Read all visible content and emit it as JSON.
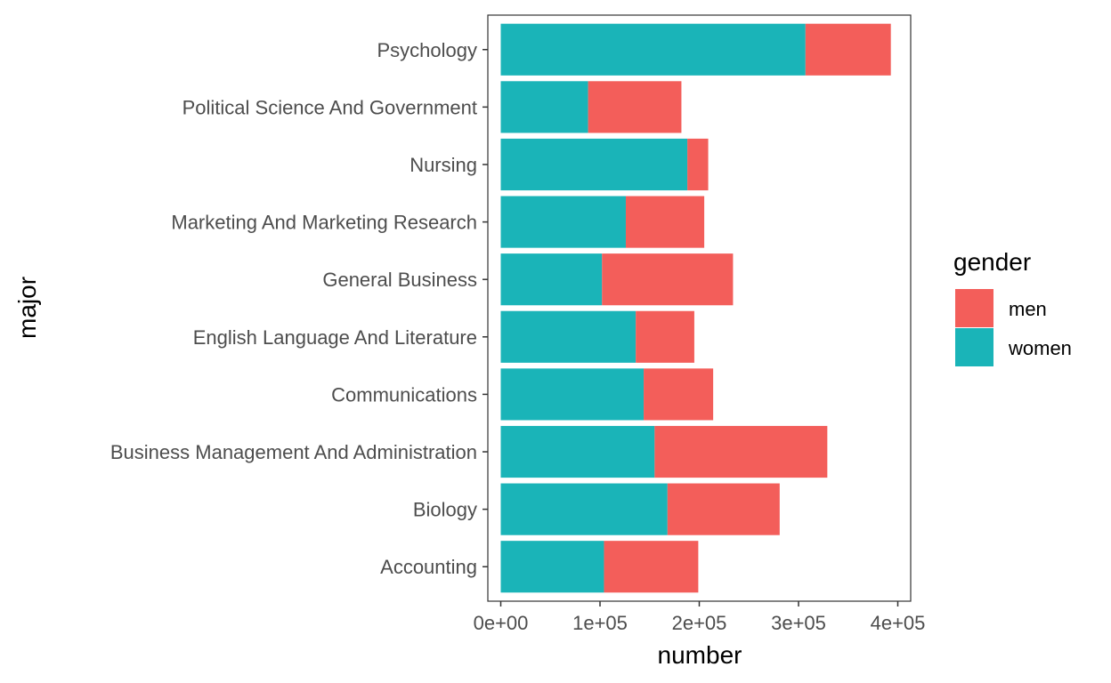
{
  "chart_data": {
    "type": "bar",
    "orientation": "horizontal",
    "stacked": true,
    "categories": [
      "Psychology",
      "Political Science And Government",
      "Nursing",
      "Marketing And Marketing Research",
      "General Business",
      "English Language And Literature",
      "Communications",
      "Business Management And Administration",
      "Biology",
      "Accounting"
    ],
    "series": [
      {
        "name": "women",
        "color": "#1AB4B8",
        "values": [
          307000,
          88000,
          188000,
          126000,
          102000,
          136000,
          144000,
          155000,
          168000,
          104000
        ]
      },
      {
        "name": "men",
        "color": "#F35E5A",
        "values": [
          86000,
          94000,
          21000,
          79000,
          132000,
          59000,
          70000,
          174000,
          113000,
          95000
        ]
      }
    ],
    "xlim": [
      -13000,
      413000
    ],
    "xticks": [
      0,
      100000,
      200000,
      300000,
      400000
    ],
    "xtick_labels": [
      "0e+00",
      "1e+05",
      "2e+05",
      "3e+05",
      "4e+05"
    ],
    "xlabel": "number",
    "ylabel": "major",
    "legend": {
      "title": "gender",
      "position": "right",
      "items": [
        {
          "label": "men",
          "color": "#F35E5A"
        },
        {
          "label": "women",
          "color": "#1AB4B8"
        }
      ]
    },
    "grid": false
  }
}
